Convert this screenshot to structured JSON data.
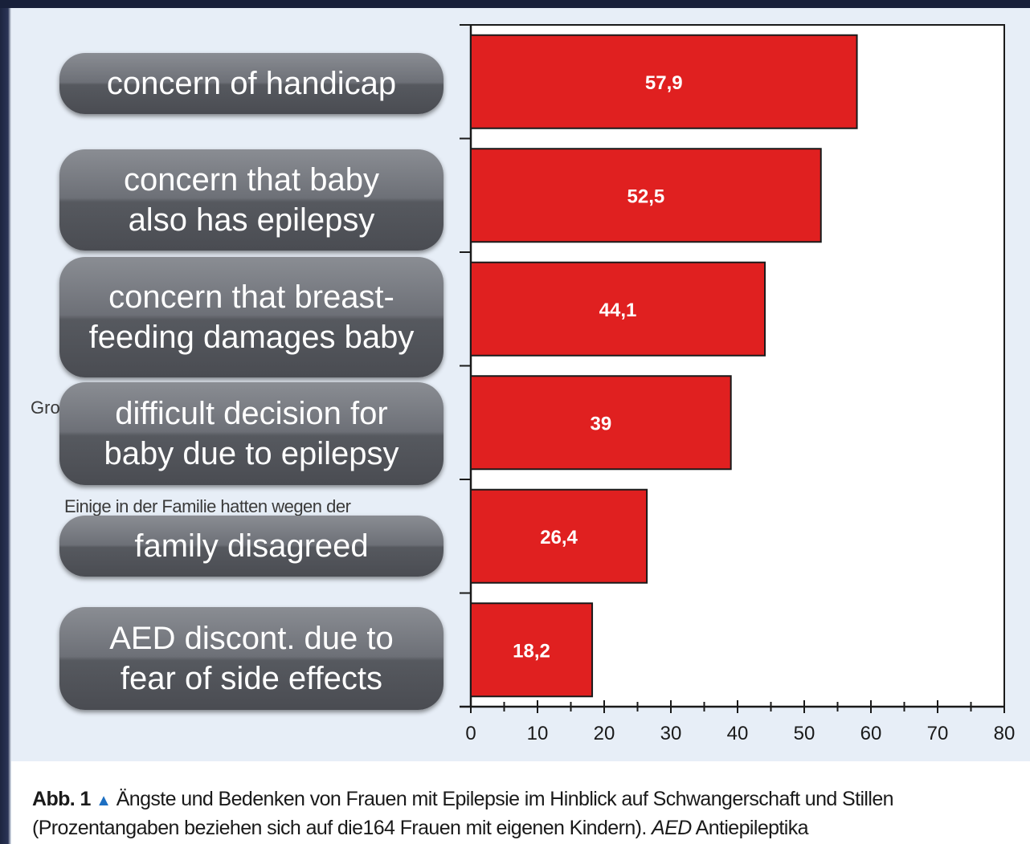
{
  "chart_data": {
    "type": "bar",
    "orientation": "horizontal",
    "categories": [
      "concern of handicap",
      "concern that baby also has epilepsy",
      "concern that breast-feeding damages baby",
      "difficult decision for baby due to epilepsy",
      "family disagreed",
      "AED discont. due to fear of side effects"
    ],
    "values": [
      57.9,
      52.5,
      44.1,
      39,
      26.4,
      18.2
    ],
    "value_labels": [
      "57,9",
      "52,5",
      "44,1",
      "39",
      "26,4",
      "18,2"
    ],
    "xlim": [
      0,
      80
    ],
    "xticks": [
      "0",
      "10",
      "20",
      "30",
      "40",
      "50",
      "60",
      "70",
      "80"
    ],
    "bar_color": "#e02020",
    "grid": false
  },
  "overlay_labels": [
    [
      "concern of handicap"
    ],
    [
      "concern that baby",
      "also has epilepsy"
    ],
    [
      "concern that breast-",
      "feeding damages baby"
    ],
    [
      "difficult decision for",
      "baby due to epilepsy"
    ],
    [
      "family disagreed"
    ],
    [
      "AED discont. due to",
      "fear of side effects"
    ]
  ],
  "partial_labels": {
    "gro": "Gro",
    "einige": "Einige in der Familie hatten wegen der"
  },
  "caption": {
    "abb": "Abb. 1",
    "marker": "▲",
    "line1": "Ängste und Bedenken von Frauen mit Epilepsie im Hinblick auf Schwangerschaft und Stillen",
    "line2_a": "(Prozentangaben beziehen sich auf die164 Frauen mit eigenen Kindern). ",
    "line2_aed": "AED",
    "line2_b": " Antiepileptika"
  }
}
